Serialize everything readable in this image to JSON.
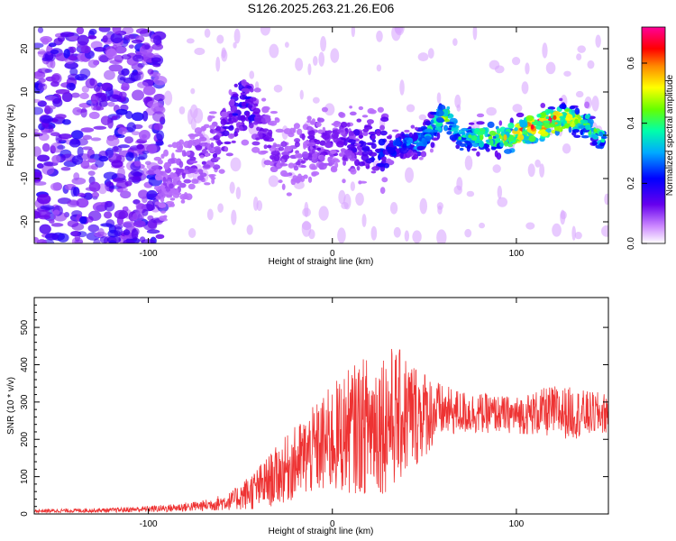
{
  "title": "S126.2025.263.21.26.E06",
  "chart_data": [
    {
      "type": "heatmap",
      "xlabel": "Height of straight line (km)",
      "ylabel": "Frequency (Hz)",
      "xlim": [
        -162,
        150
      ],
      "ylim": [
        -25,
        25
      ],
      "xticks": [
        -100,
        0,
        100
      ],
      "yticks": [
        -20,
        -10,
        0,
        10,
        20
      ],
      "colorbar": {
        "label": "Normalized spectral amplitude",
        "range": [
          0.0,
          0.72
        ],
        "ticks": [
          0.0,
          0.2,
          0.4,
          0.6
        ]
      },
      "ridge": {
        "x": [
          -95,
          -80,
          -65,
          -55,
          -50,
          -45,
          -38,
          -30,
          -20,
          -10,
          0,
          10,
          20,
          30,
          40,
          50,
          55,
          60,
          65,
          70,
          80,
          90,
          100,
          110,
          120,
          130,
          140,
          148
        ],
        "freq": [
          -12,
          -8,
          -3,
          3,
          8,
          6,
          2,
          -5,
          -4,
          -2,
          -1,
          -2,
          -3,
          -3,
          -2,
          -1,
          2,
          5,
          3,
          -1,
          0,
          -1,
          0,
          2,
          3,
          4,
          2,
          -1
        ],
        "amplitude": [
          0.08,
          0.1,
          0.12,
          0.15,
          0.22,
          0.18,
          0.12,
          0.1,
          0.1,
          0.12,
          0.12,
          0.14,
          0.18,
          0.22,
          0.26,
          0.32,
          0.38,
          0.45,
          0.4,
          0.35,
          0.38,
          0.42,
          0.55,
          0.6,
          0.62,
          0.48,
          0.4,
          0.32
        ]
      }
    },
    {
      "type": "line",
      "xlabel": "Height of straight line (km)",
      "ylabel": "SNR (10 * v/v)",
      "xlim": [
        -162,
        150
      ],
      "ylim": [
        0,
        580
      ],
      "xticks": [
        -100,
        0,
        100
      ],
      "yticks": [
        0,
        100,
        200,
        300,
        400,
        500
      ],
      "color": "#ee3333",
      "envelope": {
        "x": [
          -162,
          -120,
          -90,
          -70,
          -55,
          -40,
          -25,
          -10,
          0,
          10,
          20,
          30,
          40,
          50,
          60,
          70,
          80,
          90,
          100,
          110,
          120,
          130,
          140,
          150
        ],
        "mean": [
          8,
          10,
          15,
          22,
          35,
          70,
          120,
          170,
          200,
          225,
          240,
          255,
          265,
          270,
          275,
          272,
          270,
          268,
          265,
          270,
          275,
          270,
          268,
          270
        ],
        "spread": [
          5,
          6,
          10,
          15,
          25,
          60,
          90,
          120,
          150,
          170,
          190,
          200,
          170,
          120,
          70,
          60,
          55,
          50,
          50,
          60,
          70,
          70,
          60,
          55
        ]
      }
    }
  ]
}
